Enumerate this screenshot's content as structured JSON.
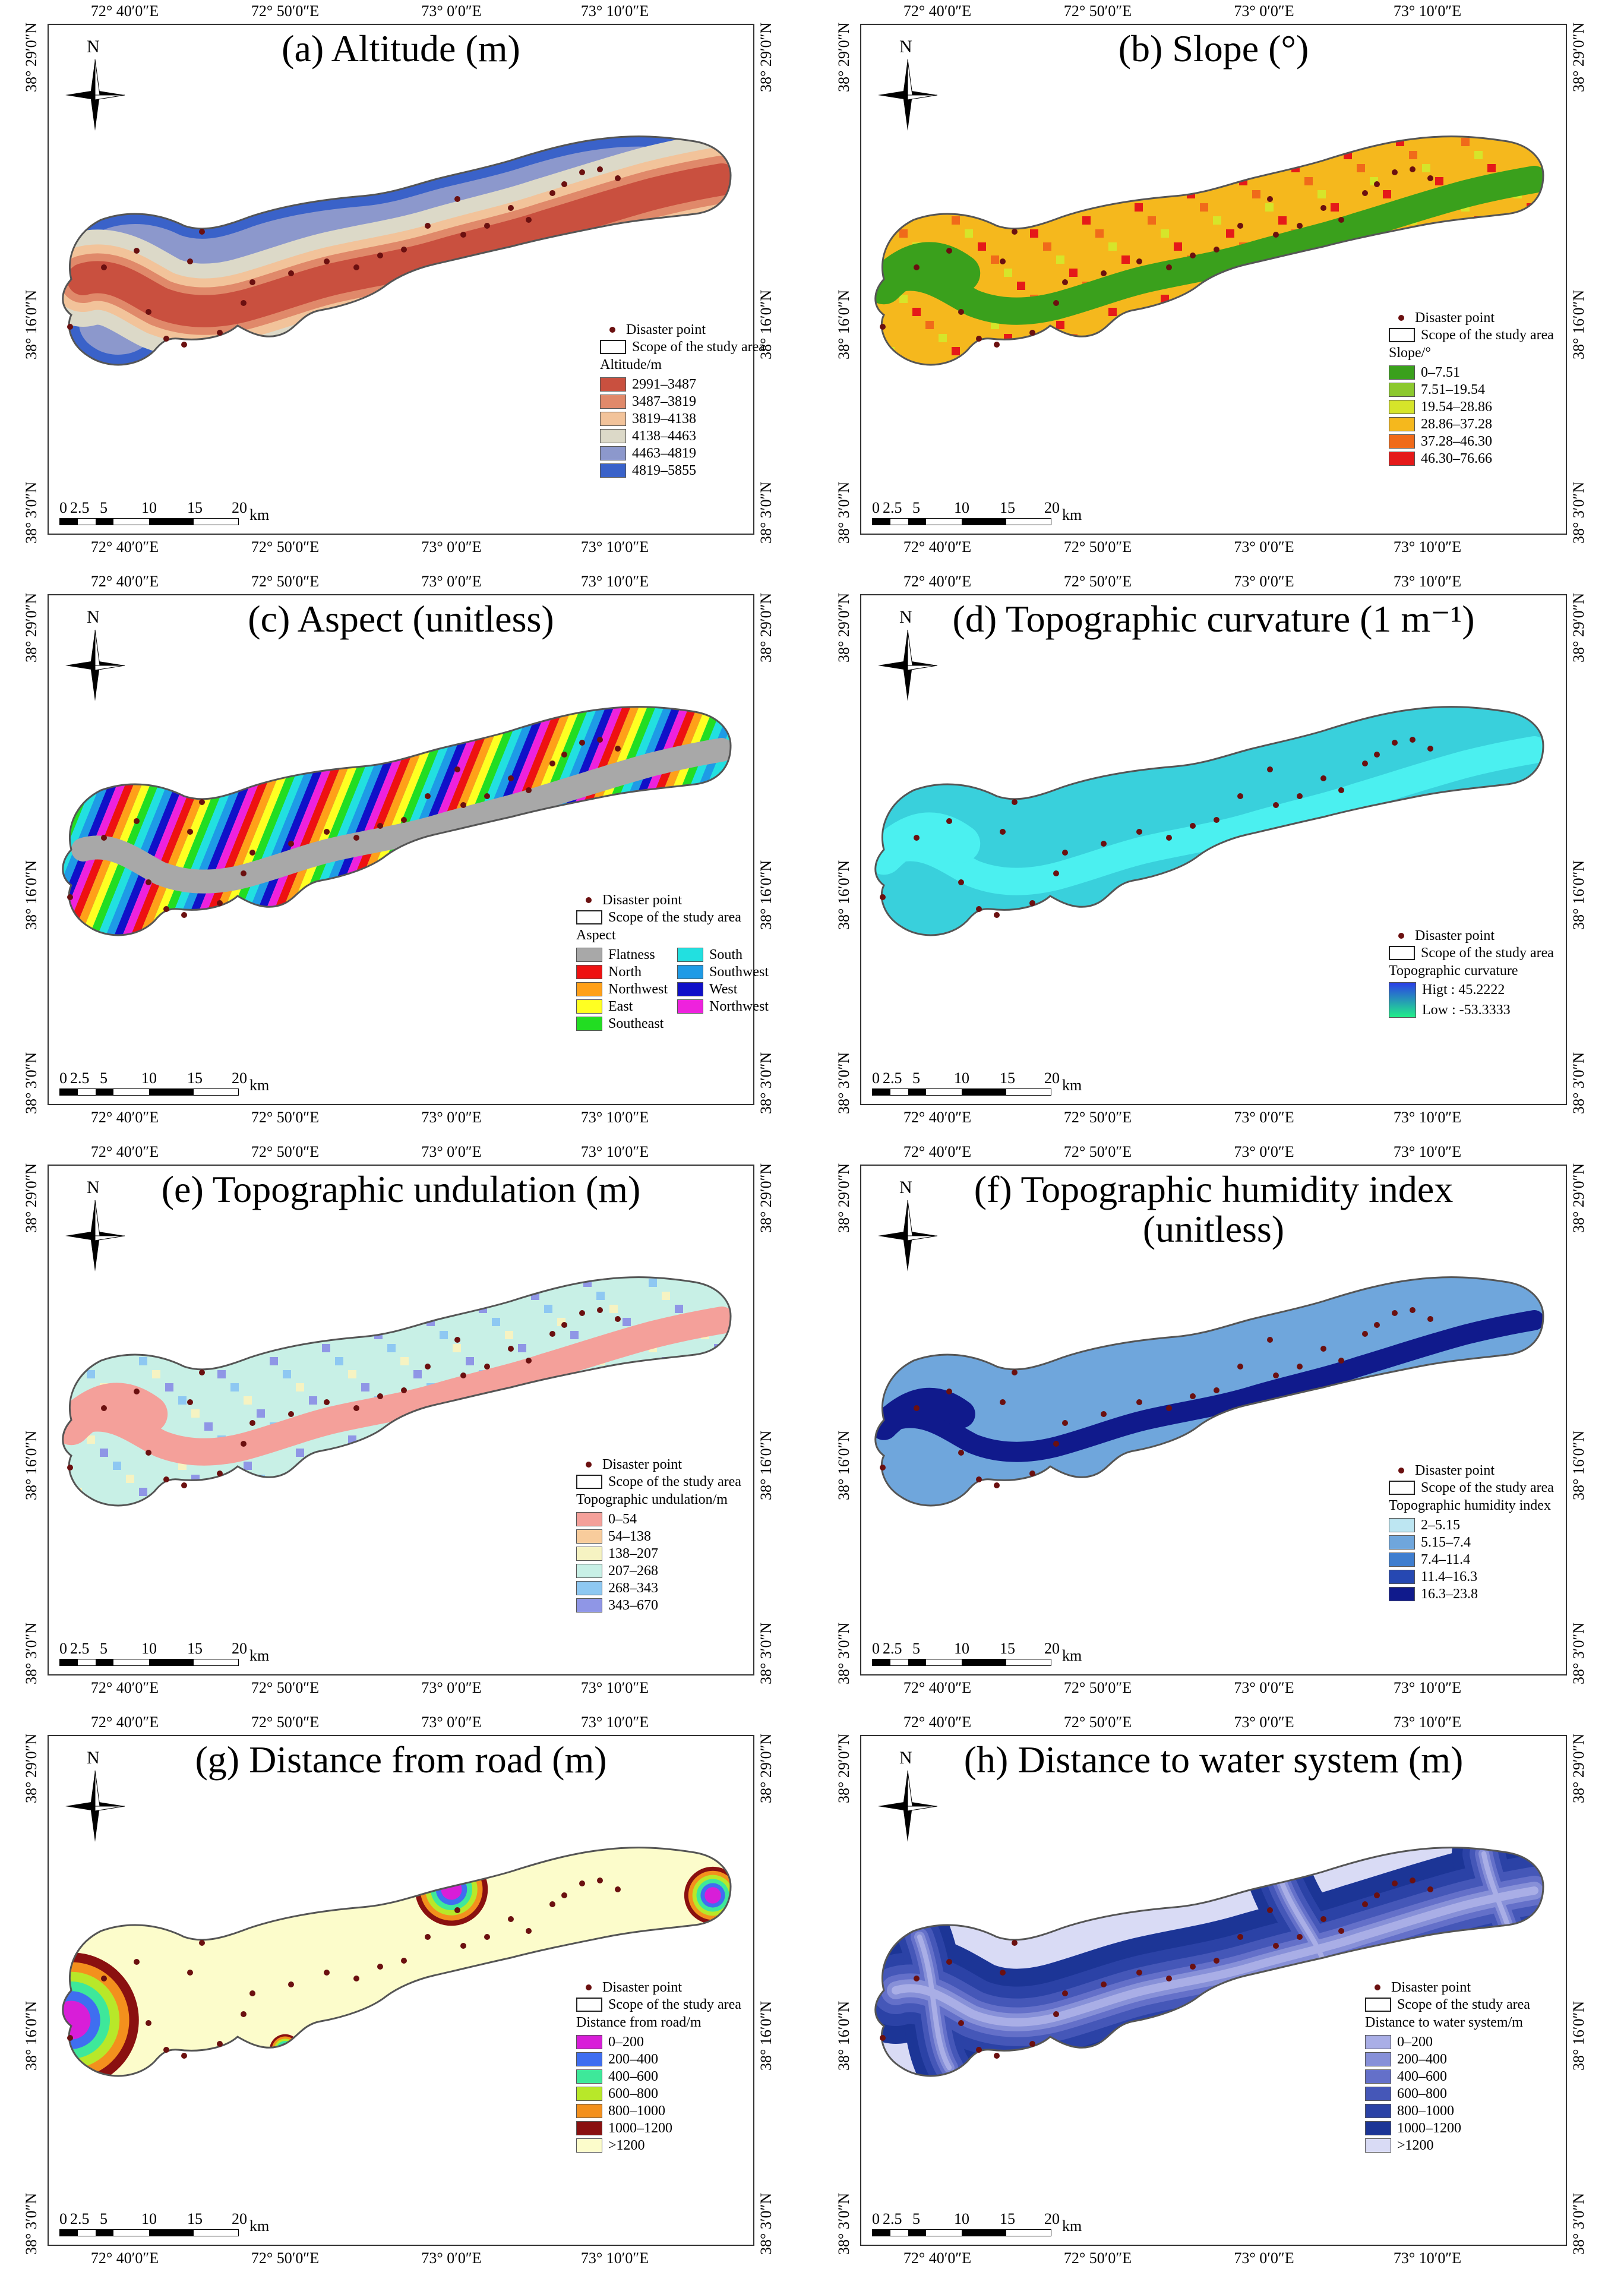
{
  "lon_ticks": [
    "72° 40′0″E",
    "72° 50′0″E",
    "73° 0′0″E",
    "73° 10′0″E"
  ],
  "lat_ticks": [
    "38° 29′0″N",
    "38° 16′0″N",
    "38° 3′0″N"
  ],
  "north_label": "N",
  "scale": {
    "labels": [
      "0",
      "2.5",
      "5",
      "10",
      "15",
      "20"
    ],
    "unit": "km"
  },
  "disaster_label": "Disaster point",
  "scope_label": "Scope of the study area",
  "colors": {
    "disaster_point": "#6b1010",
    "boundary": "#555555"
  },
  "panels": [
    {
      "id": "a",
      "title": "(a) Altitude (m)",
      "legend_title": "Altitude/m",
      "legend_type": "classes",
      "classes": [
        {
          "label": "2991–3487",
          "color": "#c9503f"
        },
        {
          "label": "3487–3819",
          "color": "#e0896a"
        },
        {
          "label": "3819–4138",
          "color": "#f2c39a"
        },
        {
          "label": "4138–4463",
          "color": "#dcd9c8"
        },
        {
          "label": "4463–4819",
          "color": "#8c98cc"
        },
        {
          "label": "4819–5855",
          "color": "#3a62c9"
        }
      ]
    },
    {
      "id": "b",
      "title": "(b) Slope (°)",
      "legend_title": "Slope/°",
      "legend_type": "classes",
      "classes": [
        {
          "label": "0–7.51",
          "color": "#3aa01c"
        },
        {
          "label": "7.51–19.54",
          "color": "#8cc92e"
        },
        {
          "label": "19.54–28.86",
          "color": "#d6e52a"
        },
        {
          "label": "28.86–37.28",
          "color": "#f5b81d"
        },
        {
          "label": "37.28–46.30",
          "color": "#f06a1a"
        },
        {
          "label": "46.30–76.66",
          "color": "#e51919"
        }
      ]
    },
    {
      "id": "c",
      "title": "(c) Aspect (unitless)",
      "legend_title": "Aspect",
      "legend_type": "aspect",
      "classes": [
        {
          "label": "Flatness",
          "color": "#a8a8a8"
        },
        {
          "label": "South",
          "color": "#22e0e0"
        },
        {
          "label": "North",
          "color": "#ee1111"
        },
        {
          "label": "Southwest",
          "color": "#1e9be6"
        },
        {
          "label": "Northwest",
          "color": "#ffa019"
        },
        {
          "label": "West",
          "color": "#1010c8"
        },
        {
          "label": "East",
          "color": "#ffff22"
        },
        {
          "label": "Northwest",
          "color": "#ee22dd"
        },
        {
          "label": "Southeast",
          "color": "#22dd22"
        }
      ]
    },
    {
      "id": "d",
      "title": "(d) Topographic curvature (1 m⁻¹)",
      "legend_title": "Topographic curvature",
      "legend_type": "gradient",
      "gradient": {
        "high": "Higt : 45.2222",
        "low": "Low : -53.3333",
        "top_color": "#2a3ee8",
        "bottom_color": "#22ee88"
      }
    },
    {
      "id": "e",
      "title": "(e) Topographic undulation (m)",
      "legend_title": "Topographic undulation/m",
      "legend_type": "classes",
      "classes": [
        {
          "label": "0–54",
          "color": "#f4a09a"
        },
        {
          "label": "54–138",
          "color": "#f8cc9c"
        },
        {
          "label": "138–207",
          "color": "#f6f3c2"
        },
        {
          "label": "207–268",
          "color": "#c8f0e6"
        },
        {
          "label": "268–343",
          "color": "#8ec8f2"
        },
        {
          "label": "343–670",
          "color": "#8f96e6"
        }
      ]
    },
    {
      "id": "f",
      "title": "(f) Topographic humidity index",
      "title_line2": "(unitless)",
      "legend_title": "Topographic humidity index",
      "legend_type": "classes",
      "classes": [
        {
          "label": "2–5.15",
          "color": "#bde6f2"
        },
        {
          "label": "5.15–7.4",
          "color": "#6fa6dc"
        },
        {
          "label": "7.4–11.4",
          "color": "#3f7ecf"
        },
        {
          "label": "11.4–16.3",
          "color": "#2648b2"
        },
        {
          "label": "16.3–23.8",
          "color": "#101a8c"
        }
      ]
    },
    {
      "id": "g",
      "title": "(g) Distance from road (m)",
      "legend_title": "Distance from road/m",
      "legend_type": "classes",
      "classes": [
        {
          "label": "0–200",
          "color": "#d81ed8"
        },
        {
          "label": "200–400",
          "color": "#3f6ef0"
        },
        {
          "label": "400–600",
          "color": "#3ee89a"
        },
        {
          "label": "600–800",
          "color": "#b8e829"
        },
        {
          "label": "800–1000",
          "color": "#f3901d"
        },
        {
          "label": "1000–1200",
          "color": "#8a1010"
        },
        {
          "label": ">1200",
          "color": "#fcfccb"
        }
      ]
    },
    {
      "id": "h",
      "title": "(h) Distance to water system (m)",
      "legend_title": "Distance to water system/m",
      "legend_type": "classes",
      "classes": [
        {
          "label": "0–200",
          "color": "#a9aee6"
        },
        {
          "label": "200–400",
          "color": "#8790d8"
        },
        {
          "label": "400–600",
          "color": "#6470c9"
        },
        {
          "label": "600–800",
          "color": "#4557b8"
        },
        {
          "label": "800–1000",
          "color": "#2b42a6"
        },
        {
          "label": "1000–1200",
          "color": "#1c3596"
        },
        {
          "label": ">1200",
          "color": "#d9dbf5"
        }
      ]
    }
  ]
}
